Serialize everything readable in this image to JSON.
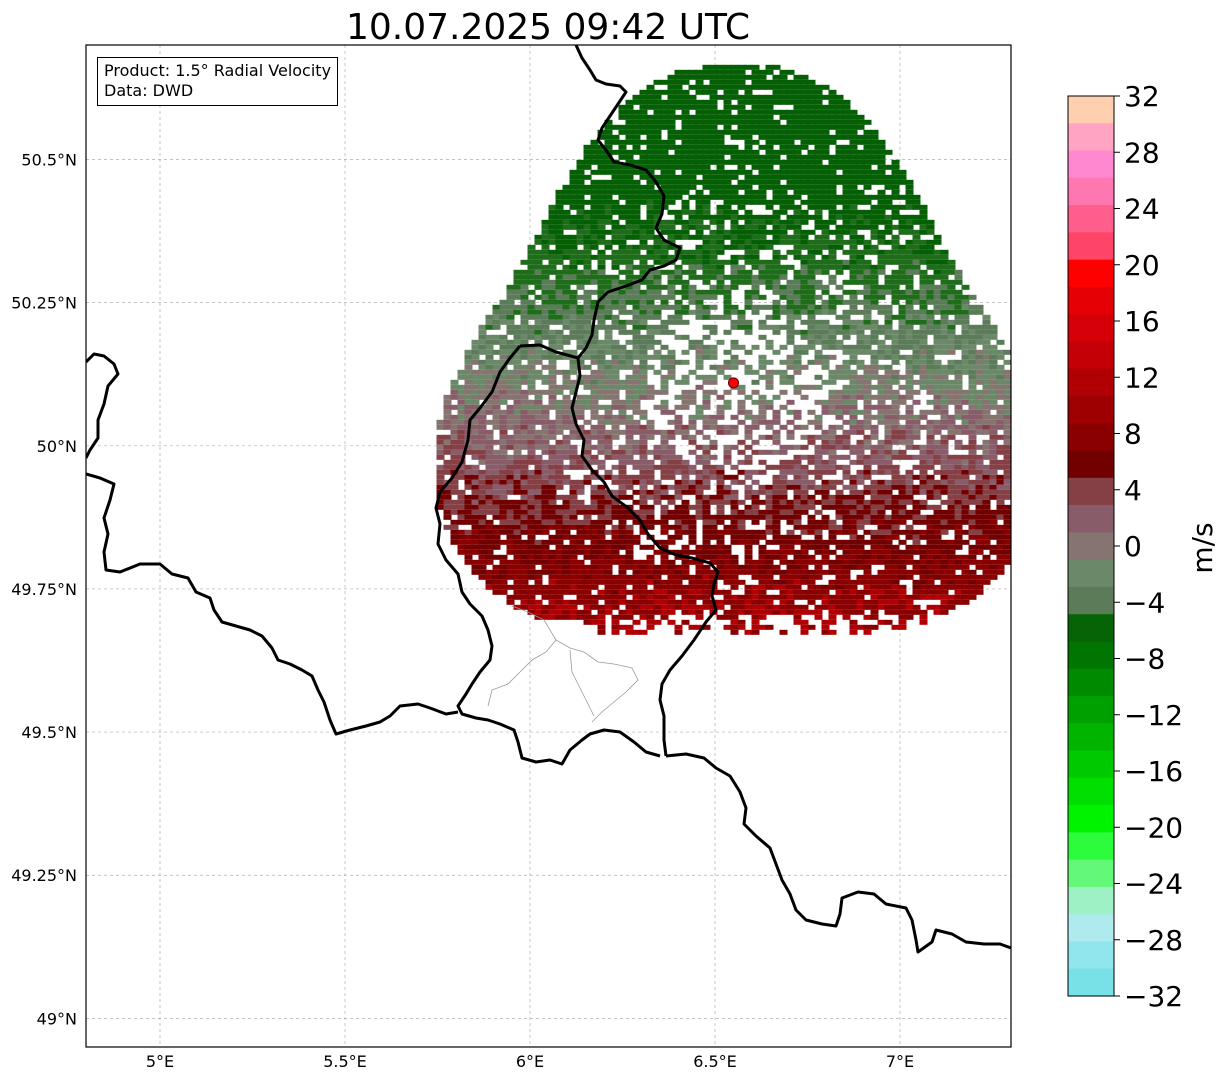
{
  "title": "10.07.2025 09:42 UTC",
  "info": {
    "product": "Product: 1.5° Radial Velocity",
    "source": "Data: DWD"
  },
  "map": {
    "lon_range": [
      4.8,
      7.3
    ],
    "lat_range": [
      48.95,
      50.7
    ],
    "lat_ticks": [
      {
        "value": 50.5,
        "label": "50.5°N"
      },
      {
        "value": 50.25,
        "label": "50.25°N"
      },
      {
        "value": 50.0,
        "label": "50°N"
      },
      {
        "value": 49.75,
        "label": "49.75°N"
      },
      {
        "value": 49.5,
        "label": "49.5°N"
      },
      {
        "value": 49.25,
        "label": "49.25°N"
      },
      {
        "value": 49.0,
        "label": "49°N"
      }
    ],
    "lon_ticks": [
      {
        "value": 5.0,
        "label": "5°E"
      },
      {
        "value": 5.5,
        "label": "5.5°E"
      },
      {
        "value": 6.0,
        "label": "6°E"
      },
      {
        "value": 6.5,
        "label": "6.5°E"
      },
      {
        "value": 7.0,
        "label": "7°E"
      }
    ],
    "radar_site": {
      "lon": 6.55,
      "lat": 50.11,
      "color": "#ff0000"
    },
    "grid": true
  },
  "colorbar": {
    "label": "m/s",
    "range": [
      -32,
      32
    ],
    "ticks": [
      "32",
      "28",
      "24",
      "20",
      "16",
      "12",
      "8",
      "4",
      "0",
      "−4",
      "−8",
      "−12",
      "−16",
      "−20",
      "−24",
      "−28",
      "−32"
    ],
    "colors_top_to_bottom": [
      "#ffcfb0",
      "#ffa5c3",
      "#ff88d0",
      "#ff77b0",
      "#ff5f8c",
      "#ff4567",
      "#ff0000",
      "#e50005",
      "#d50007",
      "#c40006",
      "#b10004",
      "#9e0002",
      "#8a0000",
      "#720000",
      "#844044",
      "#885c69",
      "#867470",
      "#6b8869",
      "#5b7b59",
      "#066406",
      "#007500",
      "#008a00",
      "#00a000",
      "#00b400",
      "#00c900",
      "#00df00",
      "#00f400",
      "#2cfc3c",
      "#64f878",
      "#9ef1c4",
      "#aeeaee",
      "#90e6ec",
      "#77e1e7"
    ]
  }
}
